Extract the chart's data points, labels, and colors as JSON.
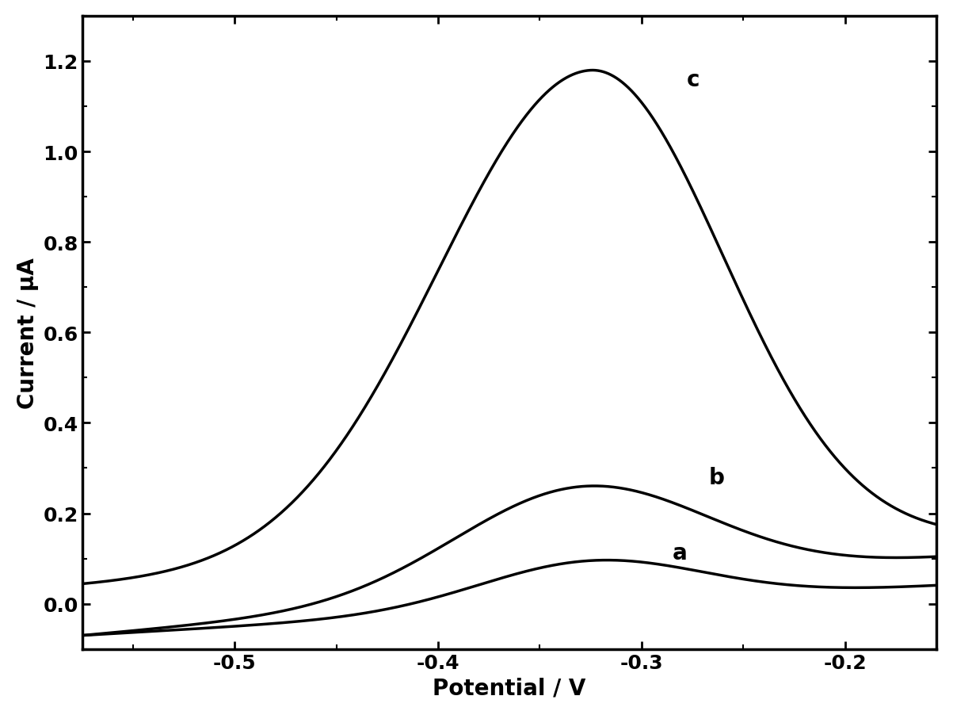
{
  "xlabel": "Potential / V",
  "ylabel": "Current / μA",
  "xlim": [
    -0.575,
    -0.155
  ],
  "ylim": [
    -0.1,
    1.3
  ],
  "xticks": [
    -0.5,
    -0.4,
    -0.3,
    -0.2
  ],
  "yticks": [
    0.0,
    0.2,
    0.4,
    0.6,
    0.8,
    1.0,
    1.2
  ],
  "line_color": "#000000",
  "background_color": "#ffffff",
  "label_fontsize": 20,
  "tick_fontsize": 18,
  "line_width": 2.5,
  "label_positions": {
    "a": [
      -0.285,
      0.088
    ],
    "b": [
      -0.267,
      0.255
    ],
    "c": [
      -0.278,
      1.135
    ]
  }
}
